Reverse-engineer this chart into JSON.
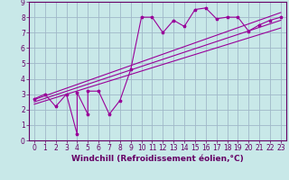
{
  "xlabel": "Windchill (Refroidissement éolien,°C)",
  "bg_color": "#c8e8e8",
  "grid_color": "#a0b8c8",
  "line_color": "#990099",
  "x_data": [
    0,
    1,
    2,
    3,
    4,
    4,
    5,
    5,
    6,
    7,
    8,
    9,
    10,
    11,
    12,
    13,
    14,
    15,
    16,
    17,
    18,
    19,
    20,
    21,
    22,
    23
  ],
  "y_data": [
    2.7,
    3.0,
    2.2,
    3.0,
    0.4,
    3.1,
    1.7,
    3.2,
    3.2,
    1.7,
    2.6,
    4.6,
    8.0,
    8.0,
    7.0,
    7.8,
    7.4,
    8.5,
    8.6,
    7.9,
    8.0,
    8.0,
    7.1,
    7.5,
    7.8,
    8.0
  ],
  "reg_lines": [
    {
      "x": [
        0,
        23
      ],
      "y": [
        2.65,
        8.3
      ]
    },
    {
      "x": [
        0,
        23
      ],
      "y": [
        2.5,
        7.8
      ]
    },
    {
      "x": [
        0,
        23
      ],
      "y": [
        2.35,
        7.3
      ]
    }
  ],
  "xlim": [
    -0.5,
    23.5
  ],
  "ylim": [
    0,
    9
  ],
  "xticks": [
    0,
    1,
    2,
    3,
    4,
    5,
    6,
    7,
    8,
    9,
    10,
    11,
    12,
    13,
    14,
    15,
    16,
    17,
    18,
    19,
    20,
    21,
    22,
    23
  ],
  "yticks": [
    0,
    1,
    2,
    3,
    4,
    5,
    6,
    7,
    8,
    9
  ],
  "tick_fontsize": 5.5,
  "xlabel_fontsize": 6.5,
  "spine_color": "#660066",
  "axis_border_color": "#660066"
}
